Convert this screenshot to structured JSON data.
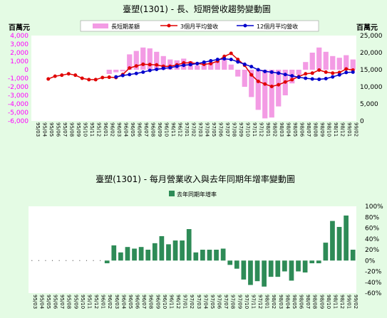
{
  "colors": {
    "background": "#e4fbe4",
    "plot_bg": "#ffffff",
    "left_axis": "#ff00ff",
    "bar_pink": "#f39be4",
    "line_red": "#e00000",
    "line_blue": "#0000cc",
    "bar_green": "#2e8b57"
  },
  "chart_data": [
    {
      "type": "bar+line",
      "title": "臺塑(1301) -  長、短期營收趨勢變動圖",
      "left_unit": "百萬元",
      "right_unit": "百萬元",
      "categories": [
        "95/03",
        "95/04",
        "95/05",
        "95/06",
        "95/07",
        "95/08",
        "95/09",
        "95/10",
        "95/11",
        "95/12",
        "96/01",
        "96/02",
        "96/03",
        "96/04",
        "96/05",
        "96/06",
        "96/07",
        "96/08",
        "96/09",
        "96/10",
        "96/11",
        "96/12",
        "97/01",
        "97/02",
        "97/03",
        "97/04",
        "97/05",
        "97/06",
        "97/07",
        "97/08",
        "97/09",
        "97/10",
        "97/11",
        "97/12",
        "98/01",
        "98/02",
        "98/03",
        "98/04",
        "98/05",
        "98/06",
        "98/07",
        "98/08",
        "98/09",
        "98/10",
        "98/11",
        "98/12",
        "99/01",
        "99/02"
      ],
      "y_left": {
        "ylim": [
          -6000,
          4000
        ],
        "ticks": [
          "4,000",
          "3,000",
          "2,000",
          "1,000",
          "0",
          "-1,000",
          "-2,000",
          "-3,000",
          "-4,000",
          "-5,000",
          "-6,000"
        ]
      },
      "y_right": {
        "ylim": [
          0,
          25000
        ],
        "ticks": [
          "25,000",
          "20,000",
          "15,000",
          "10,000",
          "5,000",
          "0"
        ]
      },
      "series": [
        {
          "name": "長短期差額",
          "kind": "bar",
          "axis": "left",
          "values": [
            null,
            null,
            null,
            null,
            null,
            null,
            null,
            null,
            null,
            null,
            null,
            -500,
            -300,
            -200,
            1800,
            2200,
            2600,
            2500,
            2100,
            1600,
            1200,
            1100,
            1300,
            1000,
            500,
            800,
            900,
            1000,
            1200,
            600,
            -800,
            -2000,
            -3200,
            -4700,
            -5700,
            -5600,
            -4300,
            -3000,
            -1600,
            -600,
            900,
            2000,
            2600,
            2100,
            1600,
            1400,
            1700,
            1200
          ]
        },
        {
          "name": "3個月平均營收",
          "kind": "line",
          "axis": "right",
          "values": [
            null,
            null,
            12300,
            13100,
            13400,
            13800,
            13400,
            12500,
            12100,
            12100,
            12700,
            12800,
            12700,
            13600,
            15500,
            16100,
            16600,
            16500,
            16400,
            16000,
            16000,
            16400,
            17000,
            17000,
            16800,
            16600,
            16800,
            17500,
            18900,
            19800,
            18000,
            16300,
            13500,
            11600,
            10800,
            10100,
            10600,
            11400,
            12100,
            13000,
            13800,
            14000,
            14900,
            14300,
            14000,
            14200,
            15200,
            14900
          ]
        },
        {
          "name": "12個月平均營收",
          "kind": "line",
          "axis": "right",
          "values": [
            null,
            null,
            null,
            null,
            null,
            null,
            null,
            null,
            null,
            null,
            null,
            null,
            12900,
            13300,
            13600,
            13900,
            14300,
            14800,
            15100,
            15400,
            15600,
            16000,
            16300,
            16500,
            16800,
            17200,
            17600,
            18000,
            18200,
            18000,
            17300,
            16600,
            15900,
            15000,
            14500,
            14300,
            14000,
            13600,
            13200,
            12800,
            12500,
            12300,
            12200,
            12400,
            12900,
            13500,
            14200,
            14300
          ]
        }
      ]
    },
    {
      "type": "bar",
      "title": "臺塑(1301) -  每月營業收入與去年同期年增率變動圖",
      "categories": [
        "95/03",
        "95/04",
        "95/05",
        "95/06",
        "95/07",
        "95/08",
        "95/09",
        "95/10",
        "95/11",
        "95/12",
        "96/01",
        "96/02",
        "96/03",
        "96/04",
        "96/05",
        "96/06",
        "96/07",
        "96/08",
        "96/09",
        "96/10",
        "96/11",
        "96/12",
        "97/01",
        "97/02",
        "97/03",
        "97/04",
        "97/05",
        "97/06",
        "97/07",
        "97/08",
        "97/09",
        "97/10",
        "97/11",
        "97/12",
        "98/01",
        "98/02",
        "98/03",
        "98/04",
        "98/05",
        "98/06",
        "98/07",
        "98/08",
        "98/09",
        "98/10",
        "98/11",
        "98/12",
        "99/01",
        "99/02"
      ],
      "y": {
        "ylim": [
          -60,
          100
        ],
        "ticks": [
          "100%",
          "80%",
          "60%",
          "40%",
          "20%",
          "0%",
          "-20%",
          "-40%",
          "-60%"
        ]
      },
      "series": [
        {
          "name": "去年同期年增率",
          "values": [
            null,
            null,
            null,
            null,
            null,
            null,
            null,
            null,
            null,
            null,
            null,
            -5,
            28,
            15,
            25,
            22,
            25,
            20,
            32,
            45,
            30,
            37,
            37,
            58,
            15,
            20,
            20,
            20,
            22,
            -8,
            -15,
            -35,
            -45,
            -38,
            -48,
            -30,
            -30,
            -20,
            -37,
            -20,
            -22,
            -5,
            -5,
            33,
            73,
            62,
            83,
            20
          ]
        }
      ]
    }
  ]
}
